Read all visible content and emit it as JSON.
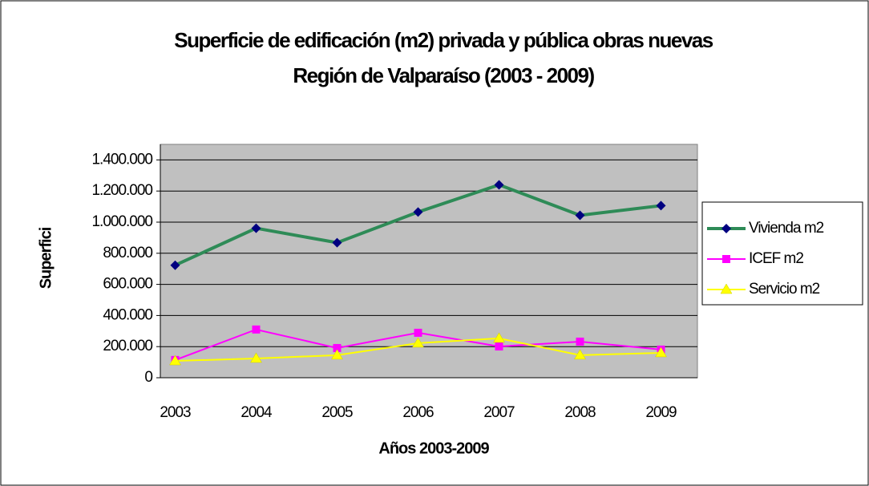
{
  "chart_data": {
    "type": "line",
    "title": [
      "Superficie de edificación (m2) privada y pública obras nuevas",
      "Región de Valparaíso (2003 - 2009)"
    ],
    "x_label": "Años 2003-2009",
    "y_label": "Superfici",
    "categories": [
      "2003",
      "2004",
      "2005",
      "2006",
      "2007",
      "2008",
      "2009"
    ],
    "series": [
      {
        "name": "Vivienda m2",
        "color": "#2e8b57",
        "marker_color": "#000080",
        "marker": "diamond",
        "values": [
          723000,
          961000,
          868000,
          1065000,
          1240000,
          1044000,
          1106000
        ]
      },
      {
        "name": "ICEF m2",
        "color": "#ff00ff",
        "marker_color": "#ff00ff",
        "marker": "square",
        "values": [
          114000,
          310000,
          191000,
          289000,
          201000,
          232000,
          181000
        ]
      },
      {
        "name": "Servicio m2",
        "color": "#ffff00",
        "marker_color": "#ffff00",
        "marker": "triangle",
        "values": [
          108000,
          124000,
          145000,
          222000,
          253000,
          145000,
          160000
        ]
      }
    ],
    "ylim": [
      0,
      1500000
    ],
    "yticks": [
      0,
      {
        "value": 200000,
        "label": "200.000"
      },
      {
        "value": 400000,
        "label": "400.000"
      },
      {
        "value": 600000,
        "label": "600.000"
      },
      {
        "value": 800000,
        "label": "800.000"
      },
      {
        "value": 1000000,
        "label": "1.000.000"
      },
      {
        "value": 1200000,
        "label": "1.200.000"
      },
      {
        "value": 1400000,
        "label": "1.400.000"
      }
    ],
    "grid": true,
    "legend": "right"
  }
}
